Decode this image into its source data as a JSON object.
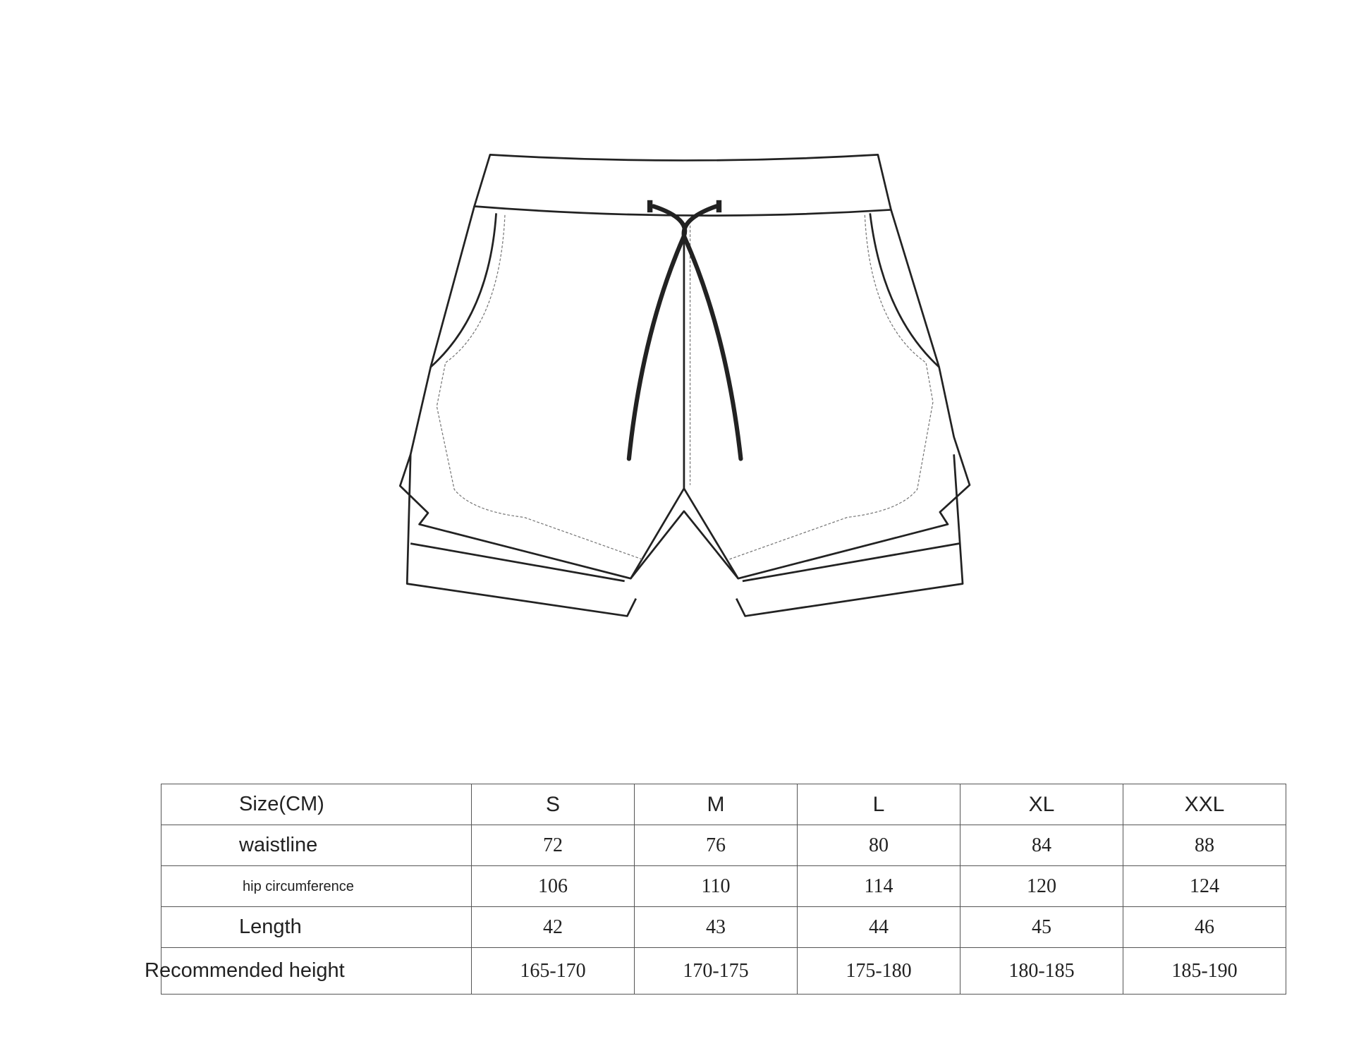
{
  "table": {
    "header_label": "Size(CM)",
    "sizes": [
      "S",
      "M",
      "L",
      "XL",
      "XXL"
    ],
    "rows": [
      {
        "label": "waistline",
        "values": [
          "72",
          "76",
          "80",
          "84",
          "88"
        ]
      },
      {
        "label": "hip circumference",
        "values": [
          "106",
          "110",
          "114",
          "120",
          "124"
        ]
      },
      {
        "label": "Length",
        "values": [
          "42",
          "43",
          "44",
          "45",
          "46"
        ]
      },
      {
        "label": "Recommended height",
        "values": [
          "165-170",
          "170-175",
          "175-180",
          "180-185",
          "185-190"
        ]
      }
    ]
  }
}
